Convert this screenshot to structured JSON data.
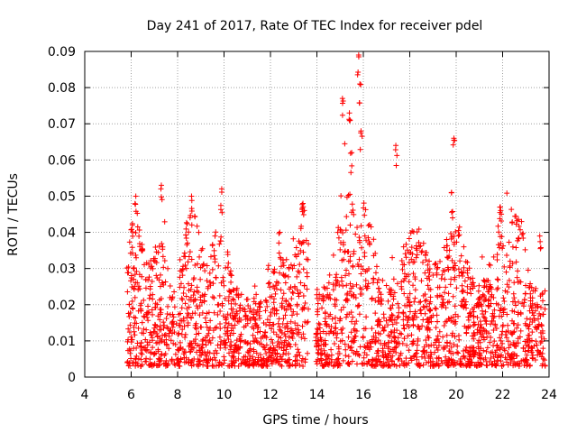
{
  "chart_data": {
    "type": "scatter",
    "title": "Day 241 of 2017, Rate Of TEC Index for receiver pdel",
    "xlabel": "GPS time / hours",
    "ylabel": "ROTI / TECUs",
    "xlim": [
      4,
      24
    ],
    "ylim": [
      0,
      0.09
    ],
    "xticks": [
      "4",
      "6",
      "8",
      "10",
      "12",
      "14",
      "16",
      "18",
      "20",
      "22",
      "24"
    ],
    "yticks": [
      "0",
      "0.01",
      "0.02",
      "0.03",
      "0.04",
      "0.05",
      "0.06",
      "0.07",
      "0.08",
      "0.09"
    ],
    "grid": true,
    "marker": "+",
    "marker_color": "#ff0000",
    "data_start_hour": 5.8,
    "data_end_hour": 23.85,
    "gap_hours": [
      13.65,
      13.95
    ],
    "series": [
      {
        "name": "pdel",
        "peaks": [
          {
            "x": 6.2,
            "y": 0.05
          },
          {
            "x": 7.3,
            "y": 0.053
          },
          {
            "x": 8.6,
            "y": 0.05
          },
          {
            "x": 9.9,
            "y": 0.052
          },
          {
            "x": 12.4,
            "y": 0.04
          },
          {
            "x": 13.4,
            "y": 0.048
          },
          {
            "x": 15.1,
            "y": 0.077
          },
          {
            "x": 15.4,
            "y": 0.073
          },
          {
            "x": 15.5,
            "y": 0.062
          },
          {
            "x": 15.8,
            "y": 0.089
          },
          {
            "x": 15.85,
            "y": 0.081
          },
          {
            "x": 15.9,
            "y": 0.068
          },
          {
            "x": 17.4,
            "y": 0.064
          },
          {
            "x": 19.9,
            "y": 0.066
          },
          {
            "x": 19.8,
            "y": 0.051
          },
          {
            "x": 21.9,
            "y": 0.047
          },
          {
            "x": 23.6,
            "y": 0.039
          }
        ]
      }
    ]
  }
}
